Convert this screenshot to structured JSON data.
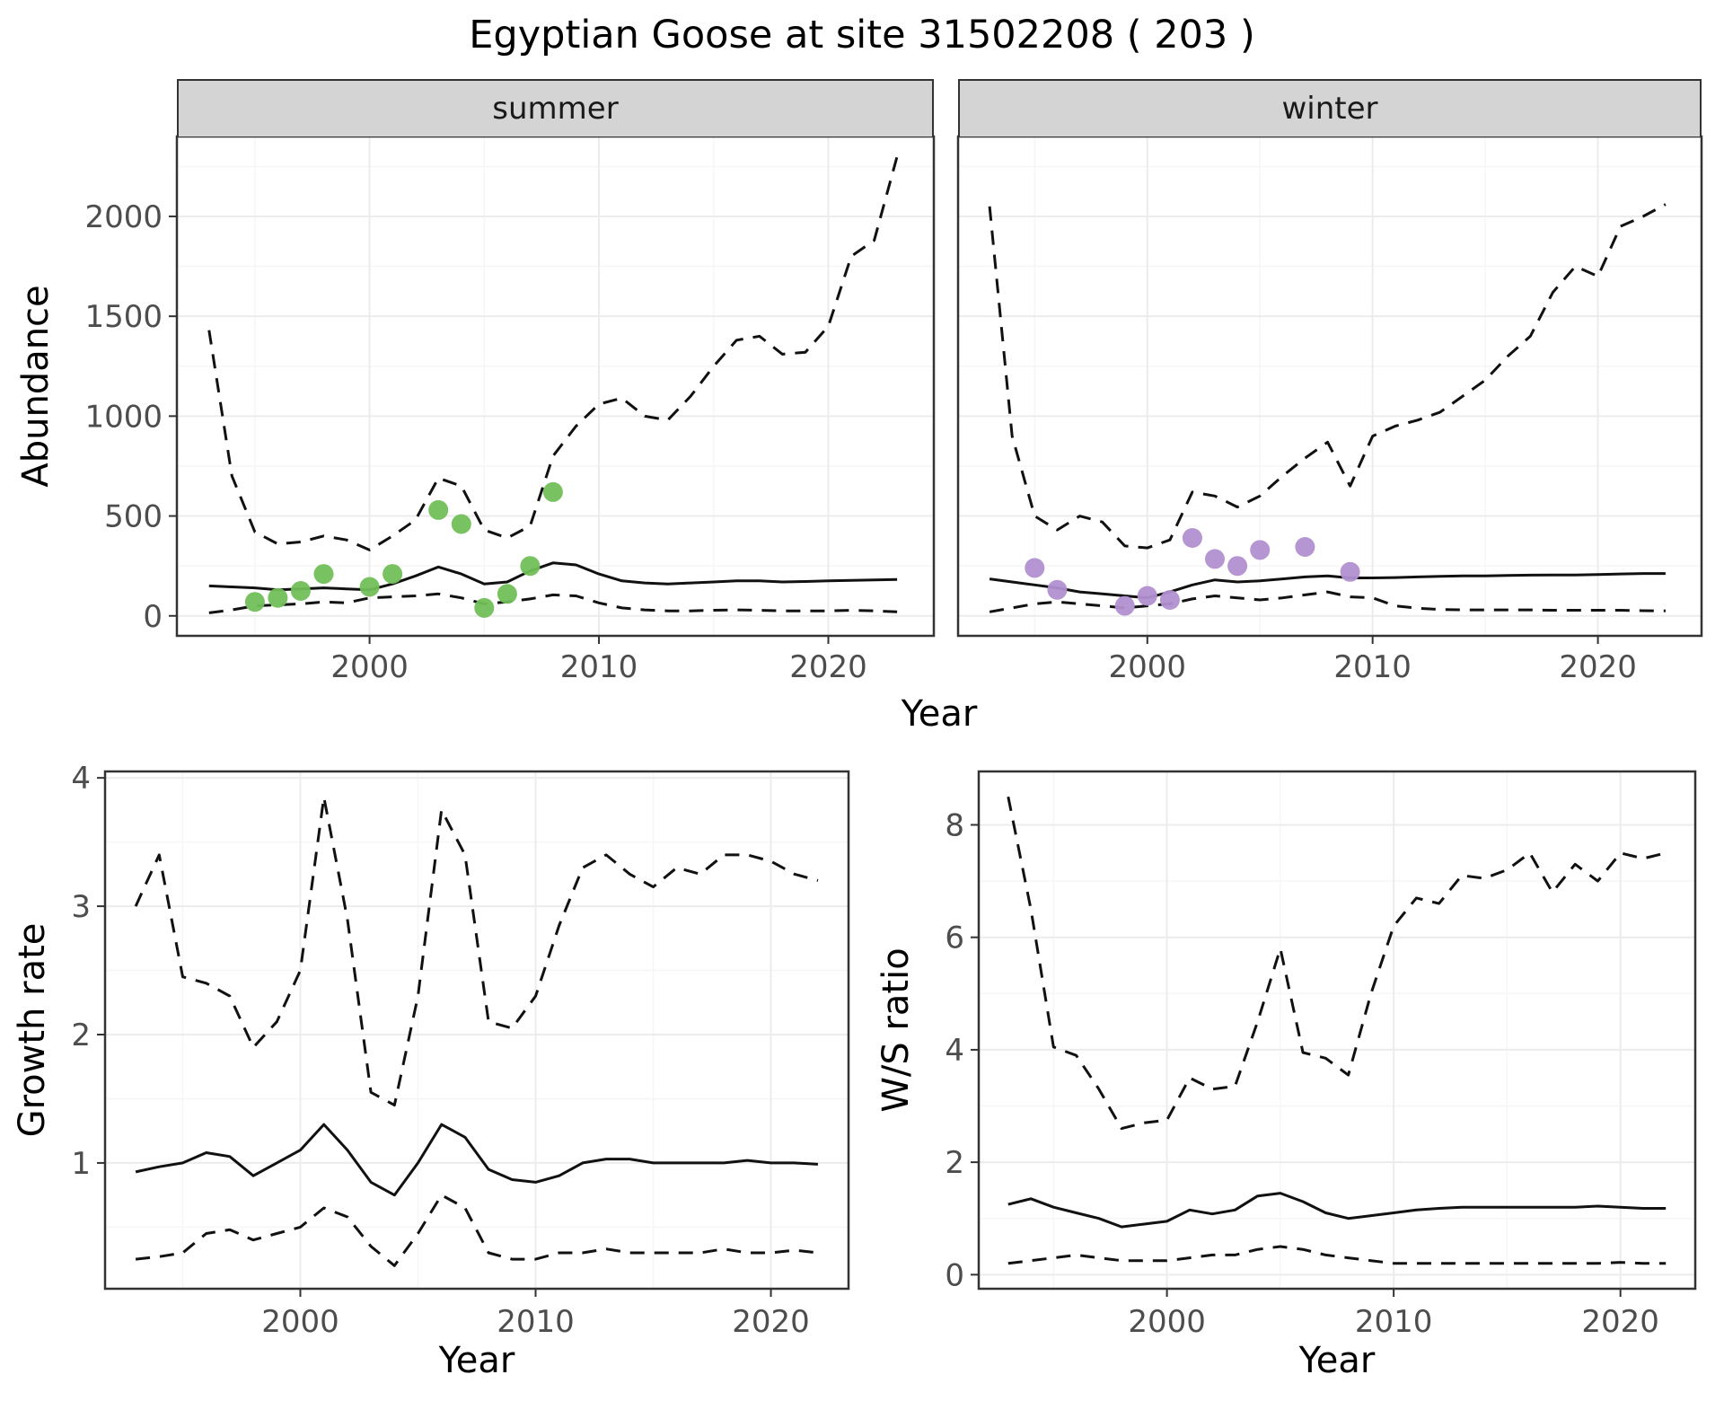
{
  "title": "Egyptian Goose at site 31502208 ( 203 )",
  "styles": {
    "line_color": "#111111",
    "grid_major": "#ececec",
    "grid_minor": "#f6f6f6",
    "panel_bg": "#ffffff",
    "panel_border": "#333333",
    "strip_fill": "#d4d4d4",
    "tick_label_color": "#4d4d4d",
    "summer_point_color": "#72bf5a",
    "winter_point_color": "#b18fd0"
  },
  "chart_data": [
    {
      "id": "abundance",
      "type": "line",
      "xlabel": "Year",
      "ylabel": "Abundance",
      "facets": [
        "summer",
        "winter"
      ],
      "legend": "none",
      "grid": true,
      "xlim": [
        1991.6,
        2024.6
      ],
      "ylim": [
        -100,
        2400
      ],
      "xticks": [
        2000,
        2010,
        2020
      ],
      "yticks": [
        0,
        500,
        1000,
        1500,
        2000
      ],
      "xticks_minor": [
        1995,
        2005,
        2015
      ],
      "yticks_minor": [
        250,
        750,
        1250,
        1750,
        2250
      ],
      "x": [
        1993,
        1994,
        1995,
        1996,
        1997,
        1998,
        1999,
        2000,
        2001,
        2002,
        2003,
        2004,
        2005,
        2006,
        2007,
        2008,
        2009,
        2010,
        2011,
        2012,
        2013,
        2014,
        2015,
        2016,
        2017,
        2018,
        2019,
        2020,
        2021,
        2022,
        2023
      ],
      "panels": [
        {
          "facet": "summer",
          "series": [
            {
              "name": "upper_ci",
              "style": "dashed",
              "values": [
                1430,
                700,
                420,
                360,
                370,
                400,
                380,
                330,
                400,
                480,
                690,
                650,
                430,
                390,
                450,
                800,
                950,
                1060,
                1090,
                1000,
                980,
                1100,
                1250,
                1380,
                1400,
                1310,
                1320,
                1450,
                1800,
                1880,
                2300
              ]
            },
            {
              "name": "estimate",
              "style": "solid",
              "values": [
                150,
                145,
                140,
                130,
                135,
                140,
                135,
                130,
                160,
                200,
                245,
                210,
                160,
                170,
                225,
                265,
                255,
                210,
                175,
                165,
                160,
                165,
                170,
                175,
                175,
                170,
                172,
                175,
                178,
                180,
                182
              ]
            },
            {
              "name": "lower_ci",
              "style": "dashed",
              "values": [
                15,
                30,
                50,
                55,
                60,
                70,
                65,
                90,
                95,
                100,
                110,
                90,
                60,
                70,
                85,
                105,
                100,
                65,
                40,
                30,
                25,
                25,
                28,
                30,
                28,
                25,
                25,
                25,
                28,
                25,
                20
              ]
            }
          ],
          "points": {
            "name": "observed_counts",
            "color_key": "summer_point_color",
            "x": [
              1995,
              1996,
              1997,
              1998,
              2000,
              2001,
              2003,
              2004,
              2005,
              2006,
              2007,
              2008
            ],
            "y": [
              70,
              90,
              125,
              210,
              145,
              210,
              530,
              460,
              40,
              110,
              250,
              620
            ]
          }
        },
        {
          "facet": "winter",
          "series": [
            {
              "name": "upper_ci",
              "style": "dashed",
              "values": [
                2050,
                900,
                500,
                430,
                500,
                470,
                350,
                340,
                380,
                620,
                600,
                545,
                600,
                700,
                790,
                870,
                650,
                900,
                950,
                980,
                1020,
                1100,
                1180,
                1300,
                1400,
                1620,
                1750,
                1700,
                1950,
                2000,
                2060
              ]
            },
            {
              "name": "estimate",
              "style": "solid",
              "values": [
                185,
                170,
                155,
                140,
                120,
                110,
                100,
                90,
                120,
                155,
                180,
                170,
                175,
                185,
                195,
                200,
                190,
                190,
                192,
                195,
                198,
                200,
                200,
                202,
                204,
                205,
                205,
                207,
                210,
                212,
                212
              ]
            },
            {
              "name": "lower_ci",
              "style": "dashed",
              "values": [
                20,
                40,
                60,
                70,
                60,
                50,
                40,
                50,
                60,
                85,
                100,
                90,
                80,
                90,
                105,
                120,
                95,
                90,
                50,
                38,
                32,
                30,
                30,
                30,
                30,
                28,
                28,
                28,
                28,
                26,
                25
              ]
            }
          ],
          "points": {
            "name": "observed_counts",
            "color_key": "winter_point_color",
            "x": [
              1995,
              1996,
              1999,
              2000,
              2001,
              2002,
              2003,
              2004,
              2005,
              2007,
              2009
            ],
            "y": [
              240,
              130,
              50,
              100,
              80,
              390,
              285,
              250,
              330,
              345,
              220
            ]
          }
        }
      ]
    },
    {
      "id": "growth",
      "type": "line",
      "xlabel": "Year",
      "ylabel": "Growth rate",
      "legend": "none",
      "grid": true,
      "xlim": [
        1991.7,
        2023.3
      ],
      "ylim": [
        0.02,
        4.05
      ],
      "xticks": [
        2000,
        2010,
        2020
      ],
      "yticks": [
        1,
        2,
        3,
        4
      ],
      "xticks_minor": [
        1995,
        2005,
        2015
      ],
      "yticks_minor": [
        0.5,
        1.5,
        2.5,
        3.5
      ],
      "x": [
        1993,
        1994,
        1995,
        1996,
        1997,
        1998,
        1999,
        2000,
        2001,
        2002,
        2003,
        2004,
        2005,
        2006,
        2007,
        2008,
        2009,
        2010,
        2011,
        2012,
        2013,
        2014,
        2015,
        2016,
        2017,
        2018,
        2019,
        2020,
        2021,
        2022
      ],
      "panels": [
        {
          "facet": null,
          "series": [
            {
              "name": "upper_ci",
              "style": "dashed",
              "values": [
                3.0,
                3.4,
                2.45,
                2.4,
                2.3,
                1.9,
                2.1,
                2.5,
                3.85,
                2.9,
                1.55,
                1.45,
                2.3,
                3.75,
                3.4,
                2.1,
                2.05,
                2.3,
                2.85,
                3.3,
                3.4,
                3.25,
                3.15,
                3.3,
                3.25,
                3.4,
                3.4,
                3.35,
                3.25,
                3.2
              ]
            },
            {
              "name": "estimate",
              "style": "solid",
              "values": [
                0.93,
                0.97,
                1.0,
                1.08,
                1.05,
                0.9,
                1.0,
                1.1,
                1.3,
                1.1,
                0.85,
                0.75,
                1.0,
                1.3,
                1.2,
                0.95,
                0.87,
                0.85,
                0.9,
                1.0,
                1.03,
                1.03,
                1.0,
                1.0,
                1.0,
                1.0,
                1.02,
                1.0,
                1.0,
                0.99
              ]
            },
            {
              "name": "lower_ci",
              "style": "dashed",
              "values": [
                0.25,
                0.27,
                0.3,
                0.45,
                0.48,
                0.4,
                0.45,
                0.5,
                0.65,
                0.58,
                0.35,
                0.2,
                0.45,
                0.75,
                0.65,
                0.3,
                0.25,
                0.25,
                0.3,
                0.3,
                0.33,
                0.3,
                0.3,
                0.3,
                0.3,
                0.33,
                0.3,
                0.3,
                0.32,
                0.3
              ]
            }
          ]
        }
      ]
    },
    {
      "id": "ws",
      "type": "line",
      "xlabel": "Year",
      "ylabel": "W/S ratio",
      "legend": "none",
      "grid": true,
      "xlim": [
        1991.7,
        2023.3
      ],
      "ylim": [
        -0.25,
        8.95
      ],
      "xticks": [
        2000,
        2010,
        2020
      ],
      "yticks": [
        0,
        2,
        4,
        6,
        8
      ],
      "xticks_minor": [
        1995,
        2005,
        2015
      ],
      "yticks_minor": [
        1,
        3,
        5,
        7
      ],
      "x": [
        1993,
        1994,
        1995,
        1996,
        1997,
        1998,
        1999,
        2000,
        2001,
        2002,
        2003,
        2004,
        2005,
        2006,
        2007,
        2008,
        2009,
        2010,
        2011,
        2012,
        2013,
        2014,
        2015,
        2016,
        2017,
        2018,
        2019,
        2020,
        2021,
        2022
      ],
      "panels": [
        {
          "facet": null,
          "series": [
            {
              "name": "upper_ci",
              "style": "dashed",
              "values": [
                8.5,
                6.5,
                4.05,
                3.9,
                3.3,
                2.6,
                2.7,
                2.75,
                3.5,
                3.3,
                3.35,
                4.5,
                5.8,
                3.95,
                3.85,
                3.55,
                5.0,
                6.2,
                6.7,
                6.6,
                7.1,
                7.05,
                7.2,
                7.5,
                6.8,
                7.3,
                7.0,
                7.5,
                7.4,
                7.5
              ]
            },
            {
              "name": "estimate",
              "style": "solid",
              "values": [
                1.25,
                1.35,
                1.2,
                1.1,
                1.0,
                0.85,
                0.9,
                0.95,
                1.15,
                1.08,
                1.15,
                1.4,
                1.45,
                1.3,
                1.1,
                1.0,
                1.05,
                1.1,
                1.15,
                1.18,
                1.2,
                1.2,
                1.2,
                1.2,
                1.2,
                1.2,
                1.22,
                1.2,
                1.18,
                1.18
              ]
            },
            {
              "name": "lower_ci",
              "style": "dashed",
              "values": [
                0.2,
                0.25,
                0.3,
                0.35,
                0.3,
                0.25,
                0.25,
                0.25,
                0.3,
                0.35,
                0.35,
                0.45,
                0.5,
                0.45,
                0.35,
                0.3,
                0.25,
                0.2,
                0.2,
                0.2,
                0.2,
                0.2,
                0.2,
                0.2,
                0.2,
                0.2,
                0.2,
                0.22,
                0.2,
                0.2
              ]
            }
          ]
        }
      ]
    }
  ]
}
